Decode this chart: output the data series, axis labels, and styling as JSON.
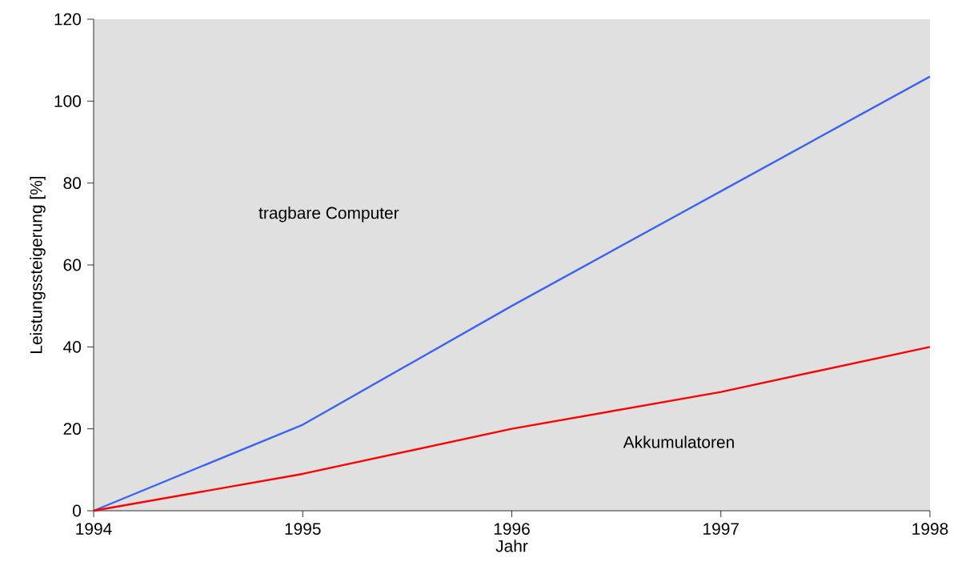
{
  "chart_data": {
    "type": "line",
    "xlabel": "Jahr",
    "ylabel": "Leistungssteigerung [%]",
    "x": [
      1994,
      1995,
      1996,
      1997,
      1998
    ],
    "series": [
      {
        "color": "#3c64f0",
        "values": [
          0,
          21,
          50,
          78,
          106
        ]
      },
      {
        "color": "#ff0000",
        "values": [
          0,
          9,
          20,
          29,
          40
        ]
      }
    ],
    "annotations": [
      "tragbare Computer",
      "Akkumulatoren"
    ],
    "xlim": [
      1994,
      1998
    ],
    "xticks": [
      1994,
      1995,
      1996,
      1997,
      1998
    ],
    "ylim": [
      0,
      120
    ],
    "yticks": [
      0,
      20,
      40,
      60,
      80,
      100,
      120
    ]
  }
}
